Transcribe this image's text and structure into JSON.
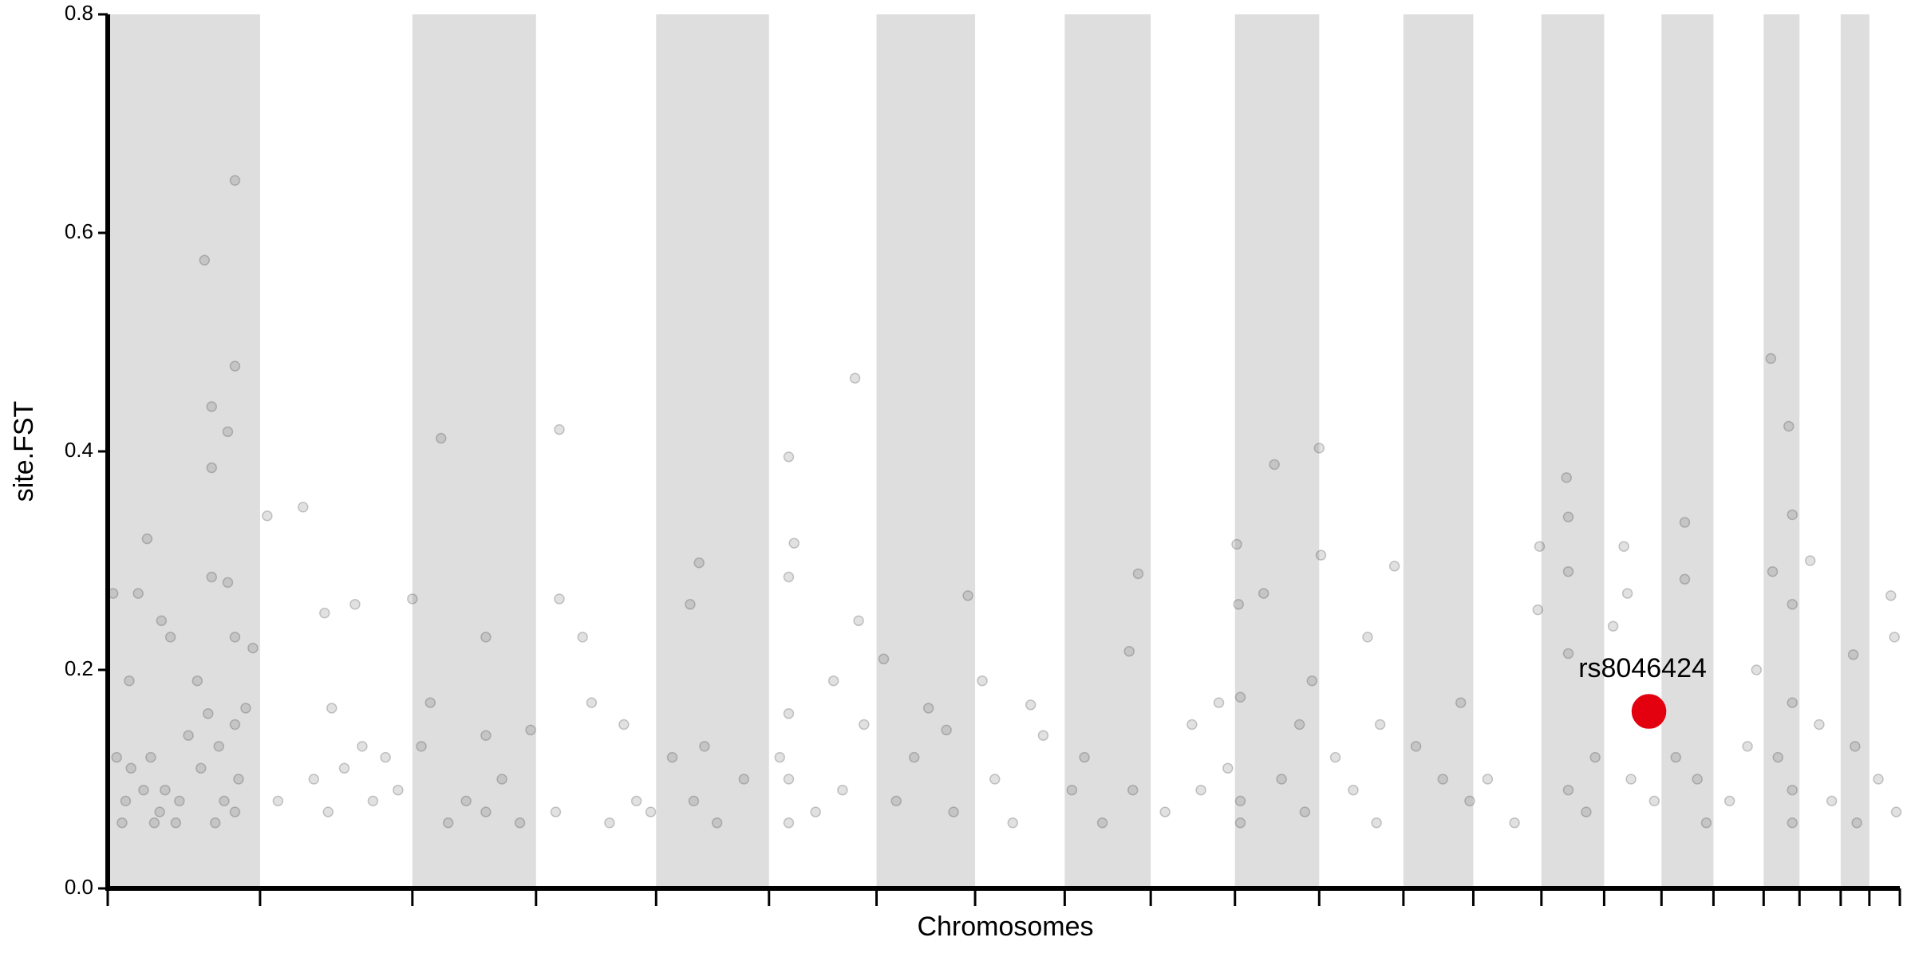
{
  "chart_data": {
    "type": "scatter",
    "x_label": "Chromosomes",
    "y_label": "site.FST",
    "xlim": [
      0,
      100
    ],
    "ylim": [
      0,
      0.8
    ],
    "yticks": [
      {
        "value": 0,
        "label": "0.0"
      },
      0.2,
      0.4,
      0.6,
      0.8
    ],
    "chromosome_bounds": [
      0,
      8.5,
      17.0,
      23.9,
      30.6,
      36.9,
      42.9,
      48.4,
      53.4,
      58.2,
      62.9,
      67.6,
      72.3,
      76.2,
      80.0,
      83.5,
      86.7,
      89.6,
      92.4,
      94.4,
      96.7,
      98.3,
      100
    ],
    "band_color": "#dedede",
    "series": [
      {
        "color": "#333333",
        "x": [
          0.3,
          0.5,
          0.8,
          1.0,
          1.2,
          1.3,
          1.7,
          2.0,
          2.2,
          2.4,
          2.6,
          2.9,
          3.0,
          3.2,
          3.5,
          3.8,
          4.0,
          4.5,
          5.0,
          5.2,
          5.4,
          5.6,
          5.8,
          5.8,
          5.8,
          6.0,
          6.2,
          6.5,
          6.7,
          6.7,
          7.1,
          7.1,
          7.1,
          7.1,
          7.1,
          7.3,
          7.7,
          8.1,
          8.9,
          9.5,
          10.9,
          11.5,
          12.1,
          12.3,
          12.5,
          13.2,
          13.8,
          14.2,
          14.8,
          15.5,
          16.2,
          17.0,
          17.5,
          18.0,
          18.6,
          19.0,
          20.0,
          21.1,
          21.1,
          21.1,
          22.0,
          23.0,
          23.6,
          25.0,
          25.2,
          25.2,
          26.5,
          27.0,
          28.0,
          28.8,
          29.5,
          30.3,
          31.5,
          32.5,
          32.7,
          33.0,
          33.3,
          34.0,
          35.5,
          37.5,
          38.0,
          38.0,
          38.0,
          38.0,
          38.0,
          38.3,
          39.5,
          40.5,
          41.0,
          41.7,
          41.9,
          42.2,
          43.3,
          44.0,
          45.0,
          45.8,
          46.8,
          47.2,
          48.0,
          48.8,
          49.5,
          50.5,
          51.5,
          52.2,
          53.8,
          54.5,
          55.5,
          57.0,
          57.2,
          57.5,
          59.0,
          60.5,
          61.0,
          62.0,
          62.5,
          63.0,
          63.1,
          63.2,
          63.2,
          63.2,
          64.5,
          65.1,
          65.5,
          66.5,
          66.8,
          67.2,
          67.6,
          67.7,
          68.5,
          69.5,
          70.3,
          70.8,
          71.0,
          71.8,
          73.0,
          74.5,
          75.5,
          76.0,
          77.0,
          78.5,
          79.8,
          79.9,
          81.4,
          81.5,
          81.5,
          81.5,
          81.5,
          82.5,
          83.0,
          84.0,
          84.6,
          84.8,
          85.0,
          86.3,
          87.5,
          88.0,
          88.0,
          88.7,
          89.2,
          90.5,
          91.5,
          92.0,
          92.8,
          92.9,
          93.2,
          93.8,
          94.0,
          94.0,
          94.0,
          94.0,
          94.0,
          95.0,
          95.5,
          96.2,
          97.4,
          97.5,
          97.6,
          98.8,
          99.5,
          99.7,
          99.8
        ],
        "values": [
          0.27,
          0.12,
          0.06,
          0.08,
          0.19,
          0.11,
          0.27,
          0.09,
          0.32,
          0.12,
          0.06,
          0.07,
          0.245,
          0.09,
          0.23,
          0.06,
          0.08,
          0.14,
          0.19,
          0.11,
          0.575,
          0.16,
          0.441,
          0.385,
          0.285,
          0.06,
          0.13,
          0.08,
          0.418,
          0.28,
          0.648,
          0.478,
          0.23,
          0.15,
          0.07,
          0.1,
          0.165,
          0.22,
          0.341,
          0.08,
          0.349,
          0.1,
          0.252,
          0.07,
          0.165,
          0.11,
          0.26,
          0.13,
          0.08,
          0.12,
          0.09,
          0.265,
          0.13,
          0.17,
          0.412,
          0.06,
          0.08,
          0.23,
          0.14,
          0.07,
          0.1,
          0.06,
          0.145,
          0.07,
          0.42,
          0.265,
          0.23,
          0.17,
          0.06,
          0.15,
          0.08,
          0.07,
          0.12,
          0.26,
          0.08,
          0.298,
          0.13,
          0.06,
          0.1,
          0.12,
          0.395,
          0.285,
          0.16,
          0.1,
          0.06,
          0.316,
          0.07,
          0.19,
          0.09,
          0.467,
          0.245,
          0.15,
          0.21,
          0.08,
          0.12,
          0.165,
          0.145,
          0.07,
          0.268,
          0.19,
          0.1,
          0.06,
          0.168,
          0.14,
          0.09,
          0.12,
          0.06,
          0.217,
          0.09,
          0.288,
          0.07,
          0.15,
          0.09,
          0.17,
          0.11,
          0.315,
          0.26,
          0.175,
          0.08,
          0.06,
          0.27,
          0.388,
          0.1,
          0.15,
          0.07,
          0.19,
          0.403,
          0.305,
          0.12,
          0.09,
          0.23,
          0.06,
          0.15,
          0.295,
          0.13,
          0.1,
          0.17,
          0.08,
          0.1,
          0.06,
          0.255,
          0.313,
          0.376,
          0.34,
          0.29,
          0.215,
          0.09,
          0.07,
          0.12,
          0.24,
          0.313,
          0.27,
          0.1,
          0.08,
          0.12,
          0.335,
          0.283,
          0.1,
          0.06,
          0.08,
          0.13,
          0.2,
          0.485,
          0.29,
          0.12,
          0.423,
          0.342,
          0.26,
          0.17,
          0.09,
          0.06,
          0.3,
          0.15,
          0.08,
          0.214,
          0.13,
          0.06,
          0.1,
          0.268,
          0.23,
          0.07
        ]
      },
      {
        "name": "rs8046424",
        "color": "#e3000f",
        "x": [
          86.0
        ],
        "values": [
          0.162
        ]
      }
    ]
  }
}
